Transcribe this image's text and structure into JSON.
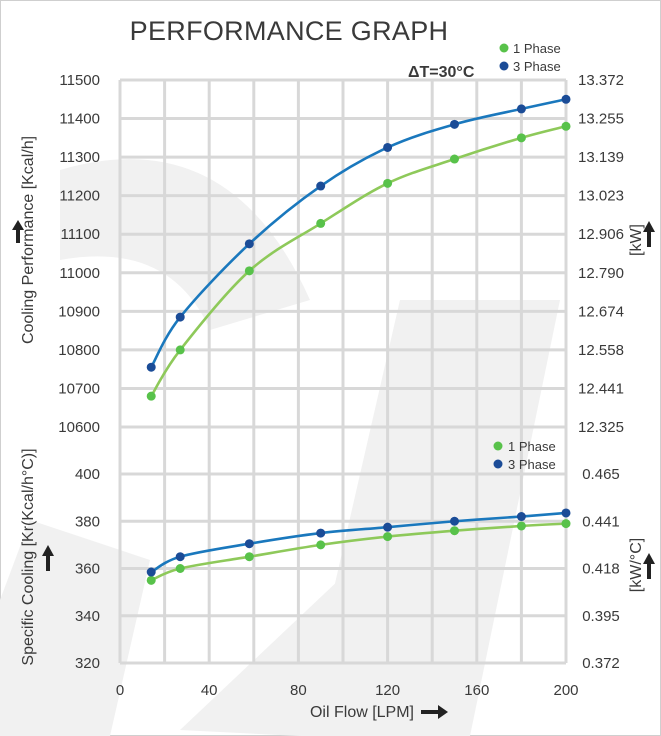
{
  "title": "PERFORMANCE GRAPH",
  "delta_t": "ΔT=30°C",
  "colors": {
    "phase1": "#8ec95a",
    "phase3": "#1a78bd",
    "phase1_marker": "#58c24a",
    "phase3_marker": "#1b4c97",
    "text": "#3a3a3a",
    "grid": "#d8d8d8"
  },
  "x_axis": {
    "label": "Oil Flow [LPM]",
    "range": [
      0,
      200
    ],
    "ticks": [
      "0",
      "40",
      "80",
      "120",
      "160",
      "200"
    ],
    "tick_values": [
      0,
      40,
      80,
      120,
      160,
      200
    ],
    "arrow_icon": "arrow-right"
  },
  "chart_data": [
    {
      "type": "line",
      "title": "Cooling Performance",
      "ylabel": "Cooling Performance [Kcal/h]",
      "ylabel_right": "[kW]",
      "ylim": [
        10600,
        11500
      ],
      "y_ticks": [
        "11500",
        "11400",
        "11300",
        "11200",
        "11100",
        "11000",
        "10900",
        "10800",
        "10700",
        "10600"
      ],
      "y_tick_values": [
        11500,
        11400,
        11300,
        11200,
        11100,
        11000,
        10900,
        10800,
        10700,
        10600
      ],
      "y_right_ticks": [
        "13.372",
        "13.255",
        "13.139",
        "13.023",
        "12.906",
        "12.790",
        "12.674",
        "12.558",
        "12.441",
        "12.325"
      ],
      "x": [
        14,
        27,
        58,
        90,
        120,
        150,
        180,
        200
      ],
      "legend_position": "top-right",
      "series": [
        {
          "name": "1 Phase",
          "values": [
            10680,
            10800,
            11005,
            11128,
            11232,
            11295,
            11350,
            11380
          ]
        },
        {
          "name": "3 Phase",
          "values": [
            10755,
            10885,
            11075,
            11225,
            11325,
            11385,
            11425,
            11450
          ]
        }
      ]
    },
    {
      "type": "line",
      "title": "Specific Cooling",
      "ylabel": "Specific Cooling [Kr(Kcal/h°C)]",
      "ylabel_right": "[kW/°C]",
      "ylim": [
        320,
        400
      ],
      "y_ticks": [
        "400",
        "380",
        "360",
        "340",
        "320"
      ],
      "y_tick_values": [
        400,
        380,
        360,
        340,
        320
      ],
      "y_right_ticks": [
        "0.465",
        "0.441",
        "0.418",
        "0.395",
        "0.372"
      ],
      "x": [
        14,
        27,
        58,
        90,
        120,
        150,
        180,
        200
      ],
      "legend_position": "top-right",
      "series": [
        {
          "name": "1 Phase",
          "values": [
            355,
            360,
            365,
            370,
            373.5,
            376,
            378,
            379
          ]
        },
        {
          "name": "3 Phase",
          "values": [
            358.5,
            365,
            370.5,
            375,
            377.5,
            380,
            382,
            383.5
          ]
        }
      ]
    }
  ]
}
